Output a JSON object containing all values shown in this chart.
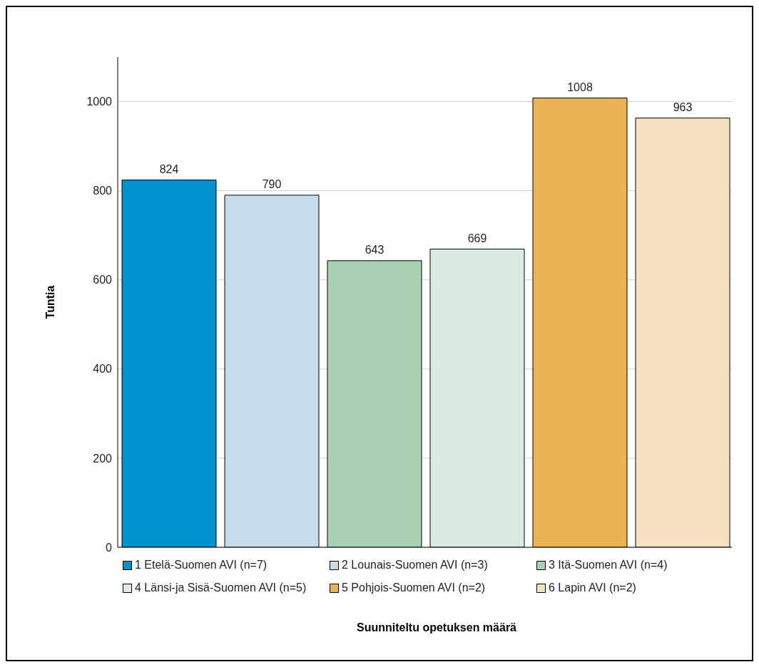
{
  "chart_data": {
    "type": "bar",
    "annotations": [
      "Suunniteltu opetuksen määrä"
    ],
    "ylabel": "Tuntia",
    "categories": [
      null
    ],
    "series": [
      {
        "name": "1 Etelä-Suomen AVI (n=7)",
        "color": "#0092cc",
        "values": [
          824
        ]
      },
      {
        "name": "2 Lounais-Suomen AVI (n=3)",
        "color": "#c6dced",
        "values": [
          790
        ]
      },
      {
        "name": "3 Itä-Suomen AVI (n=4)",
        "color": "#aad0b3",
        "values": [
          643
        ]
      },
      {
        "name": "4 Länsi-ja Sisä-Suomen AVI (n=5)",
        "color": "#dcebe1",
        "values": [
          669
        ]
      },
      {
        "name": "5 Pohjois-Suomen AVI (n=2)",
        "color": "#ebb354",
        "values": [
          1008
        ]
      },
      {
        "name": "6 Lapin AVI (n=2)",
        "color": "#f9dfc2",
        "values": [
          963
        ]
      }
    ],
    "ylim": [
      0,
      1100
    ],
    "yticks": [
      0,
      200,
      400,
      600,
      800,
      1000
    ],
    "grid": "y",
    "legend": "bottom",
    "data_labels": true
  }
}
